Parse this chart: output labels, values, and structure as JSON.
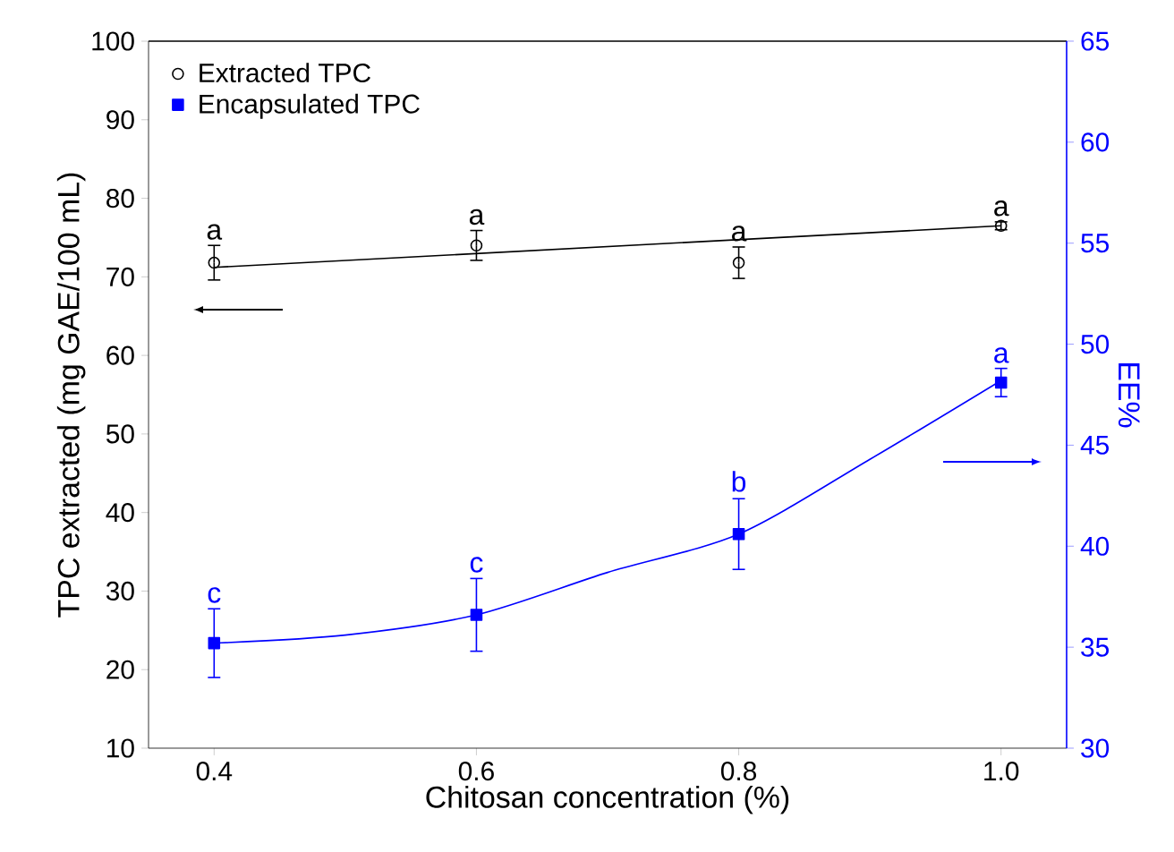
{
  "chart_data": {
    "type": "scatter",
    "xlabel": "Chitosan concentration (%)",
    "ylabel": "TPC extracted (mg GAE/100 mL)",
    "y2label": "EE%",
    "xlim": [
      0.35,
      1.05
    ],
    "xticks": [
      0.4,
      0.6,
      0.8,
      {
        "value": 1.0,
        "label": "1.0"
      }
    ],
    "ylim": [
      10,
      100
    ],
    "yticks": [
      10,
      20,
      30,
      40,
      50,
      60,
      70,
      80,
      90,
      100
    ],
    "y2lim": [
      30,
      65
    ],
    "y2ticks": [
      30,
      35,
      40,
      45,
      50,
      55,
      60,
      65
    ],
    "legend": "top left",
    "series": [
      {
        "name": "Extracted TPC",
        "color": "#000000",
        "marker": "circle",
        "x": [
          0.4,
          0.6,
          0.8,
          1.0
        ],
        "values": [
          71.8,
          74.0,
          71.8,
          76.5
        ],
        "errors": [
          2.2,
          1.9,
          2.0,
          0.5
        ]
      },
      {
        "name": "Encapsulated TPC",
        "color": "#0000ff",
        "marker": "square",
        "axis": "y2",
        "x": [
          0.4,
          0.6,
          0.8,
          1.0
        ],
        "values": [
          35.2,
          36.6,
          40.6,
          48.1
        ],
        "errors": [
          1.7,
          1.8,
          1.75,
          0.7
        ]
      },
      {
        "color": "#000000",
        "type": "line",
        "x": [
          0.4,
          1.0
        ],
        "values": [
          71.2,
          76.5
        ]
      },
      {
        "color": "#0000ff",
        "type": "line",
        "axis": "y2",
        "x": [
          0.4,
          0.5,
          0.6,
          0.7,
          0.8,
          0.9,
          1.0
        ],
        "values": [
          35.2,
          35.6,
          36.6,
          38.7,
          40.6,
          44.3,
          48.2
        ]
      }
    ],
    "annotations": [
      {
        "text": "a",
        "x": 0.4,
        "y": 71.8
      },
      {
        "text": "a",
        "x": 0.6,
        "y": 74.0
      },
      {
        "text": "a",
        "x": 0.8,
        "y": 71.8
      },
      {
        "text": "a",
        "x": 1.0,
        "y": 76.5
      },
      {
        "text": "c",
        "x": 0.4,
        "y": 23.4
      },
      {
        "text": "c",
        "x": 0.6,
        "y": 27.0
      },
      {
        "text": "b",
        "x": 0.8,
        "y": 37.4
      },
      {
        "text": "a",
        "x": 1.0,
        "y": 56.5
      }
    ]
  }
}
